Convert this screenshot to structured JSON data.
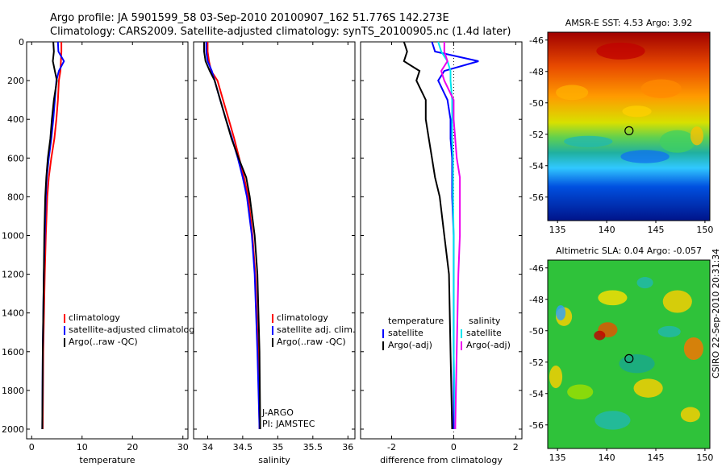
{
  "header": {
    "line1": "Argo profile: JA 5901599_58 03-Sep-2010 20100907_162 51.776S 142.273E",
    "line2": "Climatology: CARS2009. Satellite-adjusted climatology: synTS_20100905.nc (1.4d later)"
  },
  "chart_data": [
    {
      "type": "line",
      "id": "temperature-panel",
      "xlabel": "temperature",
      "ylabel": "",
      "xlim": [
        -1,
        31
      ],
      "ylim": [
        2050,
        0
      ],
      "xticks": [
        0,
        10,
        20,
        30
      ],
      "yticks": [
        0,
        200,
        400,
        600,
        800,
        1000,
        1200,
        1400,
        1600,
        1800,
        2000
      ],
      "legend_position": "lower-right",
      "legend": [
        "climatology",
        "satellite-adjusted climatology",
        "Argo(..raw -QC)"
      ],
      "series": [
        {
          "name": "climatology",
          "color": "#ff0000",
          "x": [
            5.9,
            5.9,
            5.8,
            5.7,
            5.4,
            5.2,
            4.9,
            4.5,
            3.9,
            3.4,
            3.1,
            2.8,
            2.6,
            2.3,
            2.2
          ],
          "y": [
            0,
            50,
            100,
            150,
            200,
            300,
            400,
            500,
            600,
            700,
            800,
            1000,
            1200,
            1600,
            2000
          ]
        },
        {
          "name": "satellite-adjusted climatology",
          "color": "#0000ff",
          "x": [
            5.2,
            5.3,
            6.4,
            5.4,
            4.9,
            4.6,
            4.3,
            3.9,
            3.4,
            3.0,
            2.8,
            2.6,
            2.4,
            2.2,
            2.1
          ],
          "y": [
            0,
            50,
            100,
            150,
            200,
            300,
            400,
            500,
            600,
            700,
            800,
            1000,
            1200,
            1600,
            2000
          ]
        },
        {
          "name": "Argo(..raw -QC)",
          "color": "#000000",
          "x": [
            4.3,
            4.4,
            4.2,
            4.6,
            5.0,
            4.4,
            4.0,
            3.7,
            3.2,
            2.9,
            2.7,
            2.5,
            2.4,
            2.2,
            2.1
          ],
          "y": [
            0,
            50,
            100,
            150,
            200,
            300,
            400,
            500,
            600,
            700,
            800,
            1000,
            1200,
            1600,
            2000
          ]
        }
      ]
    },
    {
      "type": "line",
      "id": "salinity-panel",
      "xlabel": "salinity",
      "ylabel": "",
      "xlim": [
        33.8,
        36.1
      ],
      "ylim": [
        2050,
        0
      ],
      "xticks": [
        34,
        34.5,
        35,
        35.5,
        36
      ],
      "yticks": [
        0,
        200,
        400,
        600,
        800,
        1000,
        1200,
        1400,
        1600,
        1800,
        2000
      ],
      "legend_position": "lower-right",
      "legend": [
        "climatology",
        "satellite adj. clim.",
        "Argo(..raw -QC)"
      ],
      "annotations": [
        "J-ARGO",
        "PI: JAMSTEC"
      ],
      "series": [
        {
          "name": "climatology",
          "color": "#ff0000",
          "x": [
            34.0,
            34.0,
            34.02,
            34.05,
            34.14,
            34.22,
            34.3,
            34.38,
            34.45,
            34.52,
            34.58,
            34.64,
            34.68,
            34.72,
            34.74
          ],
          "y": [
            0,
            50,
            100,
            150,
            200,
            300,
            400,
            500,
            600,
            700,
            800,
            1000,
            1200,
            1600,
            2000
          ]
        },
        {
          "name": "satellite adj. clim.",
          "color": "#0000ff",
          "x": [
            33.98,
            33.98,
            34.0,
            34.06,
            34.1,
            34.18,
            34.26,
            34.35,
            34.43,
            34.5,
            34.56,
            34.63,
            34.67,
            34.71,
            34.74
          ],
          "y": [
            0,
            50,
            100,
            150,
            200,
            300,
            400,
            500,
            600,
            700,
            800,
            1000,
            1200,
            1600,
            2000
          ]
        },
        {
          "name": "Argo(..raw -QC)",
          "color": "#000000",
          "x": [
            33.95,
            33.95,
            33.97,
            34.03,
            34.1,
            34.18,
            34.26,
            34.34,
            34.44,
            34.55,
            34.6,
            34.67,
            34.71,
            34.74,
            34.75
          ],
          "y": [
            0,
            50,
            100,
            150,
            200,
            300,
            400,
            500,
            600,
            700,
            800,
            1000,
            1200,
            1600,
            2000
          ]
        }
      ]
    },
    {
      "type": "line",
      "id": "difference-panel",
      "xlabel": "difference from climatology",
      "ylabel": "",
      "xlim": [
        -3.0,
        2.2
      ],
      "ylim": [
        2050,
        0
      ],
      "xticks": [
        -2,
        0,
        2
      ],
      "yticks": [
        0,
        200,
        400,
        600,
        800,
        1000,
        1200,
        1400,
        1600,
        1800,
        2000
      ],
      "legend_position": "lower",
      "legend_groups": [
        {
          "title": "temperature",
          "entries": [
            "satellite",
            "Argo(-adj)"
          ]
        },
        {
          "title": "salinity",
          "entries": [
            "satellite",
            "Argo(-adj)"
          ]
        }
      ],
      "series": [
        {
          "name": "temperature satellite",
          "color": "#0000ff",
          "x": [
            -0.7,
            -0.6,
            0.8,
            -0.3,
            -0.5,
            -0.2,
            -0.1,
            -0.1,
            -0.05,
            -0.05,
            -0.05,
            0.0,
            0.0,
            0.0,
            0.0
          ],
          "y": [
            0,
            50,
            100,
            150,
            200,
            300,
            400,
            500,
            600,
            700,
            800,
            1000,
            1200,
            1600,
            2000
          ]
        },
        {
          "name": "temperature Argo(-adj)",
          "color": "#000000",
          "x": [
            -1.6,
            -1.5,
            -1.6,
            -1.1,
            -1.2,
            -0.9,
            -0.9,
            -0.8,
            -0.7,
            -0.6,
            -0.45,
            -0.3,
            -0.15,
            -0.1,
            -0.05
          ],
          "y": [
            0,
            50,
            100,
            150,
            200,
            300,
            400,
            500,
            600,
            700,
            800,
            1000,
            1200,
            1600,
            2000
          ]
        },
        {
          "name": "salinity satellite",
          "color": "#00e5ee",
          "x": [
            -0.5,
            -0.4,
            -0.2,
            -0.1,
            -0.1,
            -0.05,
            -0.05,
            -0.05,
            -0.02,
            -0.02,
            -0.02,
            0.0,
            0.0,
            0.0,
            0.05
          ],
          "y": [
            0,
            50,
            100,
            150,
            200,
            300,
            400,
            500,
            600,
            700,
            800,
            1000,
            1200,
            1600,
            2000
          ]
        },
        {
          "name": "salinity Argo(-adj)",
          "color": "#ee00ee",
          "x": [
            -0.3,
            -0.3,
            -0.2,
            -0.4,
            -0.3,
            0.0,
            0.0,
            0.05,
            0.1,
            0.2,
            0.2,
            0.2,
            0.15,
            0.1,
            0.05
          ],
          "y": [
            0,
            50,
            100,
            150,
            200,
            300,
            400,
            500,
            600,
            700,
            800,
            1000,
            1200,
            1600,
            2000
          ]
        }
      ]
    },
    {
      "type": "heatmap",
      "id": "sst-map",
      "title": "AMSR-E SST: 4.53  Argo: 3.92",
      "xlim": [
        134,
        150.5
      ],
      "ylim": [
        -57.5,
        -45.5
      ],
      "xticks": [
        135,
        140,
        145,
        150
      ],
      "yticks": [
        -46,
        -48,
        -50,
        -52,
        -54,
        -56
      ],
      "marker": {
        "lon": 142.273,
        "lat": -51.776
      }
    },
    {
      "type": "heatmap",
      "id": "sla-map",
      "title": "Altimetric SLA: 0.04  Argo: -0.057",
      "xlim": [
        134,
        150.5
      ],
      "ylim": [
        -57.5,
        -45.5
      ],
      "xticks": [
        135,
        140,
        145,
        150
      ],
      "yticks": [
        -46,
        -48,
        -50,
        -52,
        -54,
        -56
      ],
      "marker": {
        "lon": 142.273,
        "lat": -51.776
      }
    }
  ],
  "footer": {
    "credit": "CSIRO 22-Sep-2010 20:31:34"
  }
}
